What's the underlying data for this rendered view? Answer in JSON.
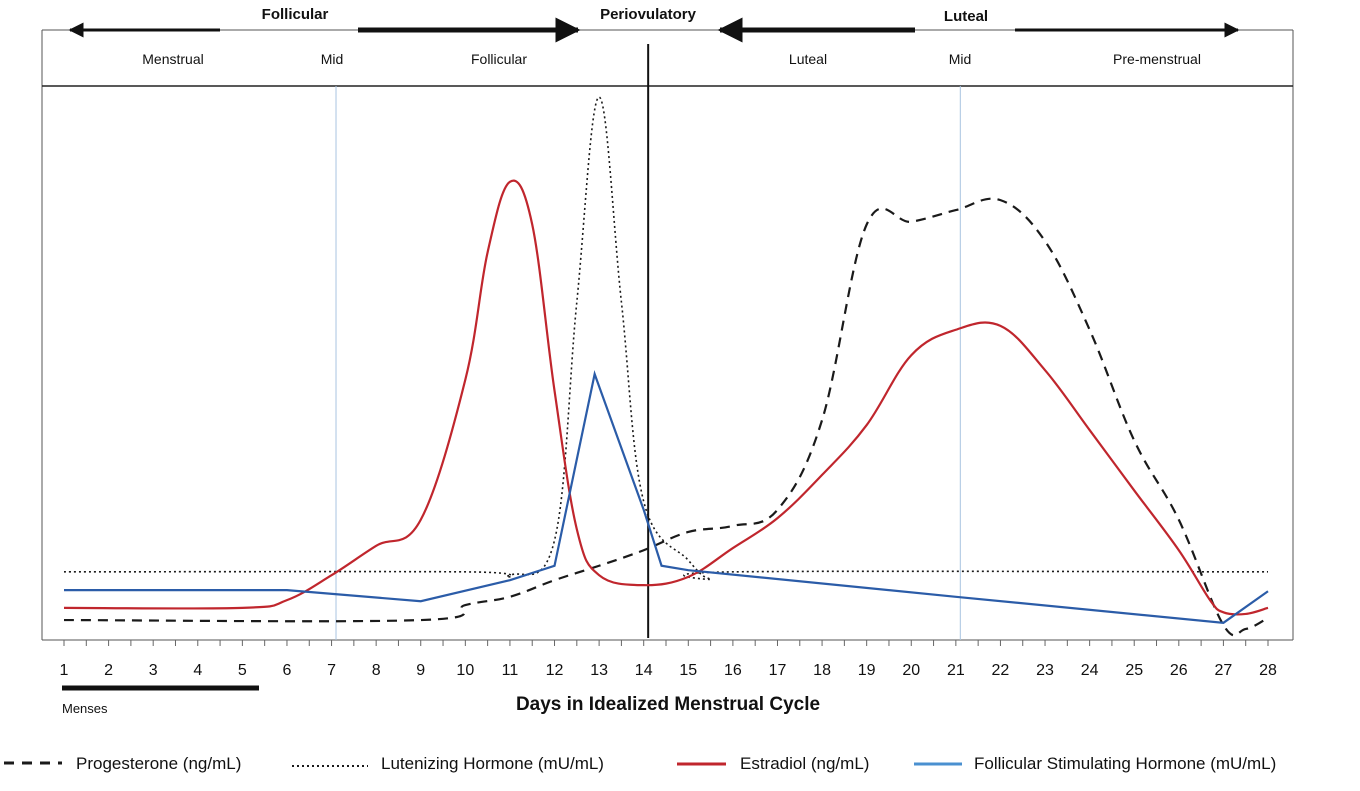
{
  "chart_data": {
    "type": "line",
    "title": "",
    "xlabel": "Days in Idealized Menstrual Cycle",
    "ylabel": "",
    "x": [
      1,
      2,
      3,
      4,
      5,
      6,
      7,
      8,
      9,
      10,
      11,
      12,
      13,
      14,
      15,
      16,
      17,
      18,
      19,
      20,
      21,
      22,
      23,
      24,
      25,
      26,
      27,
      28
    ],
    "xlim": [
      1,
      28
    ],
    "ylim": [
      0,
      100
    ],
    "y_units": "relative level (no axis shown)",
    "phases_top": [
      {
        "label": "Follicular",
        "direction": "both"
      },
      {
        "label": "Periovulatory"
      },
      {
        "label": "Luteal",
        "direction": "both"
      }
    ],
    "subphases": [
      "Menstrual",
      "Mid",
      "Follicular",
      "Luteal",
      "Mid",
      "Pre-menstrual"
    ],
    "menses_label": "Menses",
    "menses_days": [
      1,
      5.4
    ],
    "markers": [
      {
        "day": 7.1,
        "style": "light-blue"
      },
      {
        "day": 14.1,
        "style": "black"
      },
      {
        "day": 21.1,
        "style": "light-blue"
      }
    ],
    "series": [
      {
        "name": "Progesterone (ng/mL)",
        "color": "#1a1a1a",
        "dash": "dashed",
        "points": [
          [
            1,
            3.6
          ],
          [
            9,
            3.6
          ],
          [
            10,
            6.3
          ],
          [
            11,
            7.8
          ],
          [
            12,
            10.8
          ],
          [
            13,
            13.4
          ],
          [
            14,
            16.2
          ],
          [
            15,
            19.5
          ],
          [
            16,
            20.6
          ],
          [
            17,
            23.5
          ],
          [
            18,
            39.7
          ],
          [
            19,
            75
          ],
          [
            20,
            75.5
          ],
          [
            21,
            77.6
          ],
          [
            22,
            79.4
          ],
          [
            23,
            72
          ],
          [
            24,
            56
          ],
          [
            25,
            36
          ],
          [
            26,
            21.7
          ],
          [
            27,
            2.7
          ],
          [
            27.5,
            2
          ],
          [
            28,
            4
          ]
        ]
      },
      {
        "name": "Lutenizing Hormone (mU/mL)",
        "color": "#1a1a1a",
        "dash": "dotted",
        "points": [
          [
            1,
            12.3
          ],
          [
            10,
            12.3
          ],
          [
            11,
            11.7
          ],
          [
            12,
            18
          ],
          [
            12.5,
            61
          ],
          [
            13,
            98
          ],
          [
            13.5,
            61
          ],
          [
            14,
            25
          ],
          [
            15,
            14.4
          ],
          [
            15.5,
            11
          ],
          [
            16,
            12.3
          ],
          [
            28,
            12.3
          ]
        ]
      },
      {
        "name": "Estradiol (ng/mL)",
        "color": "#c0262d",
        "dash": "solid",
        "points": [
          [
            1,
            5.8
          ],
          [
            5,
            5.8
          ],
          [
            6,
            7.2
          ],
          [
            7,
            11.7
          ],
          [
            8,
            17
          ],
          [
            9,
            21.7
          ],
          [
            10,
            47
          ],
          [
            10.5,
            70
          ],
          [
            11,
            82.7
          ],
          [
            11.5,
            75
          ],
          [
            12,
            45
          ],
          [
            12.5,
            20
          ],
          [
            13,
            11.7
          ],
          [
            14,
            9.9
          ],
          [
            15,
            11.4
          ],
          [
            16,
            16.6
          ],
          [
            17,
            22
          ],
          [
            18,
            29.8
          ],
          [
            19,
            38.8
          ],
          [
            20,
            51.4
          ],
          [
            21,
            56
          ],
          [
            22,
            56.7
          ],
          [
            23,
            48.7
          ],
          [
            24,
            37.9
          ],
          [
            25,
            27
          ],
          [
            26,
            16.2
          ],
          [
            26.7,
            7.2
          ],
          [
            27,
            5
          ],
          [
            27.5,
            4.7
          ],
          [
            28,
            5.8
          ]
        ]
      },
      {
        "name": "Follicular Stimulating Hormone (mU/mL)",
        "color": "#2b5ca8",
        "dash": "solid",
        "points": [
          [
            1,
            9
          ],
          [
            6,
            9
          ],
          [
            9,
            7
          ],
          [
            11,
            10.8
          ],
          [
            12,
            13.4
          ],
          [
            12.9,
            48
          ],
          [
            14,
            23.5
          ],
          [
            14.4,
            13.4
          ],
          [
            15,
            12.6
          ],
          [
            21,
            7.8
          ],
          [
            27,
            3.1
          ],
          [
            28,
            8.8
          ]
        ]
      }
    ]
  }
}
